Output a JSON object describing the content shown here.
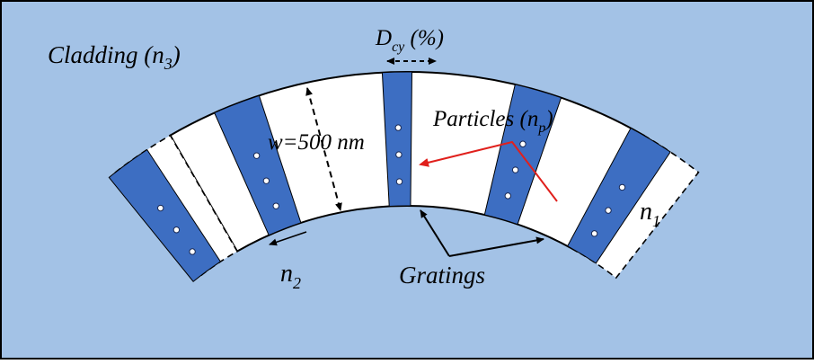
{
  "colors": {
    "cladding": "#a3c2e6",
    "core": "#ffffff",
    "grating": "#3d6ec2",
    "outline": "#000000",
    "pointer_red": "#e0201c",
    "frame_border": "#000000"
  },
  "labels": {
    "cladding": {
      "main": "Cladding (n",
      "sub": "3",
      "close": ")"
    },
    "duty_cycle": {
      "main": "D",
      "sub": "cy",
      "tail": " (%)"
    },
    "width": "w=500 nm",
    "particles": {
      "main": "Particles (n",
      "sub": "p",
      "close": ")"
    },
    "n1": {
      "main": "n",
      "sub": "1"
    },
    "n2": {
      "main": "n",
      "sub": "2"
    },
    "gratings": "Gratings"
  }
}
